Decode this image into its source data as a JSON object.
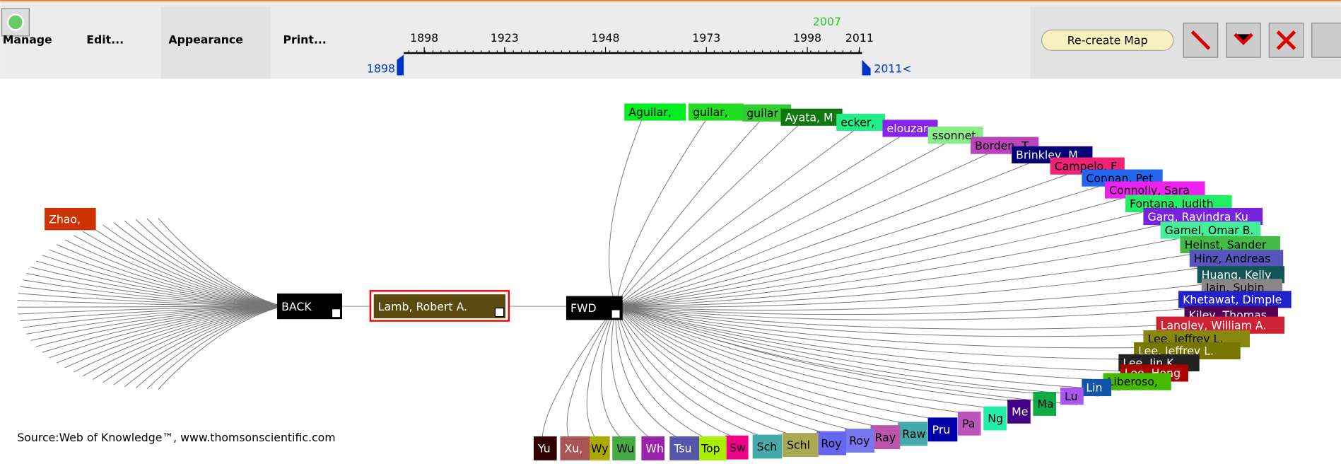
{
  "menu": [
    "Manage",
    "Edit...",
    "Appearance",
    "Print..."
  ],
  "timeline": {
    "ticks": [
      "1898",
      "1923",
      "1948",
      "1973",
      "1998",
      "2011"
    ],
    "highlight": "2007",
    "start": "1898",
    "end": "2011<"
  },
  "button": "Re-create Map",
  "nodes": {
    "center": "Lamb, Robert A.",
    "back": "BACK",
    "fwd": "FWD",
    "back_nodes": [
      {
        "label": "Zhao,",
        "color": "#cc3300"
      }
    ],
    "fwd_nodes": [
      {
        "label": "Aguilar,",
        "color": "#00ee22"
      },
      {
        "label": "guilar,",
        "color": "#22dd22"
      },
      {
        "label": "guilar",
        "color": "#33cc33"
      },
      {
        "label": "Ayata, M",
        "color": "#117711"
      },
      {
        "label": "ecker,",
        "color": "#22ee88"
      },
      {
        "label": "elouzar",
        "color": "#8822ee"
      },
      {
        "label": "ssonnet",
        "color": "#88ee88"
      },
      {
        "label": "Borden, T",
        "color": "#bb44bb"
      },
      {
        "label": "Brinkley, M",
        "color": "#000077"
      },
      {
        "label": "Campelo, F",
        "color": "#ee2277"
      },
      {
        "label": "Connan, Pet",
        "color": "#2266ee"
      },
      {
        "label": "Connolly, Sara",
        "color": "#ee22ee"
      },
      {
        "label": "Fontana, Judith",
        "color": "#22ee66"
      },
      {
        "label": "Garg, Ravindra Ku",
        "color": "#7722dd"
      },
      {
        "label": "Gamel, Omar B.",
        "color": "#44ee99"
      },
      {
        "label": "Heinst, Sander",
        "color": "#44bb44"
      },
      {
        "label": "Hinz, Andreas",
        "color": "#5555bb"
      },
      {
        "label": "Huang, Kelly",
        "color": "#115555"
      },
      {
        "label": "Jain, Subin",
        "color": "#888888"
      },
      {
        "label": "Khetawat, Dimple",
        "color": "#2222cc"
      },
      {
        "label": "Kiley, Thomas",
        "color": "#550055"
      },
      {
        "label": "Langley, William A.",
        "color": "#cc2233"
      },
      {
        "label": "Lee, Jeffrey L.",
        "color": "#888811"
      },
      {
        "label": "Lee, Jeffrey L.",
        "color": "#777700"
      },
      {
        "label": "Lee, Jin K.",
        "color": "#222222"
      },
      {
        "label": "Lee, Hong",
        "color": "#aa0000"
      },
      {
        "label": "Liberoso,",
        "color": "#44bb00"
      },
      {
        "label": "Lin",
        "color": "#1155aa"
      },
      {
        "label": "Lu",
        "color": "#aa55ee"
      },
      {
        "label": "Ma",
        "color": "#11aa44"
      },
      {
        "label": "Me",
        "color": "#440088"
      },
      {
        "label": "Ng",
        "color": "#22eeaa"
      },
      {
        "label": "Pa",
        "color": "#bb55bb"
      },
      {
        "label": "Pru",
        "color": "#0000aa"
      },
      {
        "label": "Raw",
        "color": "#44aaaa"
      },
      {
        "label": "Ray",
        "color": "#bb55aa"
      },
      {
        "label": "Roy",
        "color": "#7777ee"
      },
      {
        "label": "Roy",
        "color": "#6666ee"
      },
      {
        "label": "Schl",
        "color": "#aaaa55"
      },
      {
        "label": "Sch",
        "color": "#44aaaa"
      },
      {
        "label": "Sw",
        "color": "#ee0088"
      },
      {
        "label": "Top",
        "color": "#aaee00"
      },
      {
        "label": "Tsu",
        "color": "#5555aa"
      },
      {
        "label": "Wh",
        "color": "#9922aa"
      },
      {
        "label": "Wu",
        "color": "#44aa44"
      },
      {
        "label": "Wy",
        "color": "#aaaa00"
      },
      {
        "label": "Xu,",
        "color": "#aa5555"
      },
      {
        "label": "Yu",
        "color": "#330000"
      }
    ]
  },
  "source": "Source:Web of Knowledge™, www.thomsonscientific.com"
}
